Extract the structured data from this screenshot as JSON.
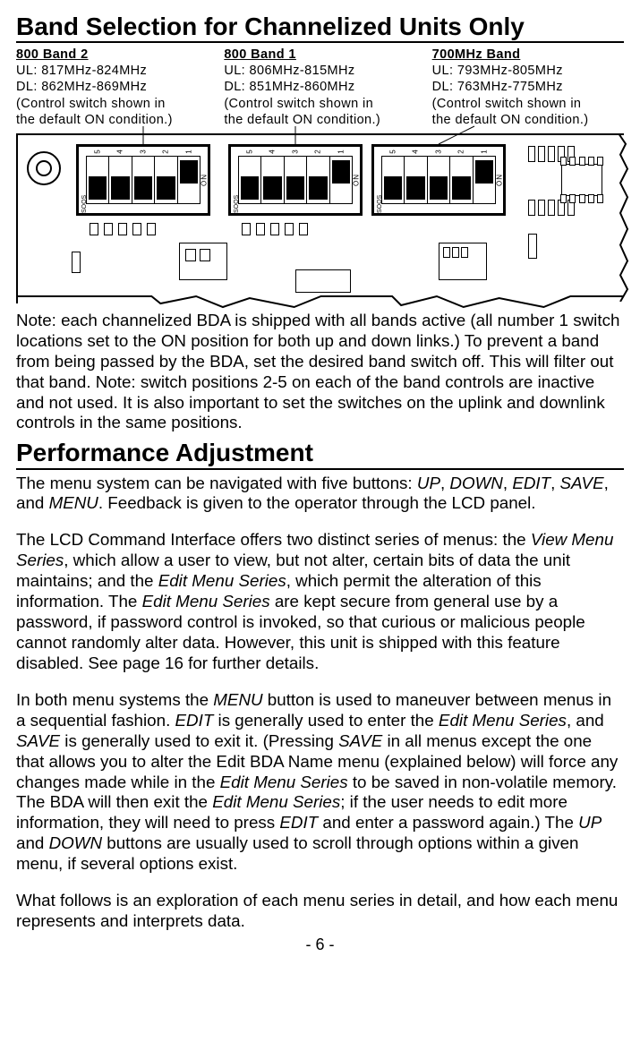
{
  "title1": "Band Selection for Channelized Units Only",
  "title2": "Performance Adjustment",
  "bands": [
    {
      "name": "800 Band 2",
      "ul": "UL: 817MHz-824MHz",
      "dl": "DL: 862MHz-869MHz",
      "note1": "(Control switch shown in",
      "note2": "the default ON condition.)"
    },
    {
      "name": "800 Band 1",
      "ul": "UL: 806MHz-815MHz",
      "dl": "DL: 851MHz-860MHz",
      "note1": "(Control switch shown in",
      "note2": "the default ON condition.)"
    },
    {
      "name": "700MHz Band",
      "ul": "UL: 793MHz-805MHz",
      "dl": "DL: 763MHz-775MHz",
      "note1": "(Control switch shown in",
      "note2": "the default ON condition.)"
    }
  ],
  "dip_positions": [
    65,
    235,
    395
  ],
  "dip_on_label": "ON",
  "dip_side_label": "SOOS",
  "switch_numbers": [
    "1",
    "2",
    "3",
    "4",
    "5"
  ],
  "note_text": "Note: each channelized BDA is shipped with all bands active (all number 1 switch locations set to the ON position for both up and down links.) To prevent a band from being passed by the BDA, set the desired band switch off. This will filter out that band. Note: switch positions 2-5 on each of the band controls are inactive and not used. It is also important to set the switches on the uplink and downlink controls in the same positions.",
  "para1a": "The menu system can be navigated with five buttons: ",
  "btn_up": "UP",
  "c1": ", ",
  "btn_down": "DOWN",
  "c2": ", ",
  "btn_edit": "EDIT",
  "c3": ", ",
  "btn_save": "SAVE",
  "c4": ", and ",
  "btn_menu": "MENU",
  "para1b": ".  Feedback is given to the operator through the LCD panel.",
  "para2a": "The LCD Command Interface offers two distinct series of menus: the ",
  "vms": "View Menu Series",
  "para2b": ", which allow a user to view, but not alter, certain bits of data the unit maintains; and the ",
  "ems": "Edit Menu Series",
  "para2c": ", which permit the alteration of this information.  The ",
  "ems2": "Edit Menu Series",
  "para2d": " are kept secure from general use by a password, if password control is invoked, so that curious or malicious people cannot randomly alter data.  However, this unit is shipped with this feature disabled.  See page 16 for further details.",
  "para3a": "In both menu systems the ",
  "m3": "MENU",
  "para3b": " button is used to maneuver between menus in a sequential fashion.  ",
  "e3": "EDIT",
  "para3c": " is generally used to enter the ",
  "ems3": "Edit Menu Series",
  "para3d": ", and ",
  "s3": "SAVE",
  "para3e": " is generally used to exit it.  (Pressing ",
  "s3b": "SAVE",
  "para3f": " in all menus except the one that allows you to alter the Edit BDA Name menu (explained below) will force any changes made while in the ",
  "ems4": "Edit Menu Series",
  "para3g": " to be saved in non-volatile memory.  The BDA will then exit the ",
  "ems5": "Edit Menu Series",
  "para3h": "; if the user needs to edit more information, they will need to press ",
  "e3b": "EDIT",
  "para3i": " and enter a password again.)  The ",
  "u3": "UP",
  "para3j": " and ",
  "d3": "DOWN",
  "para3k": " buttons are usually used to scroll through options within a given menu, if several options exist.",
  "para4": "What follows is an exploration of each menu series in detail, and how each menu represents and interprets data.",
  "pagenum": "- 6 -"
}
